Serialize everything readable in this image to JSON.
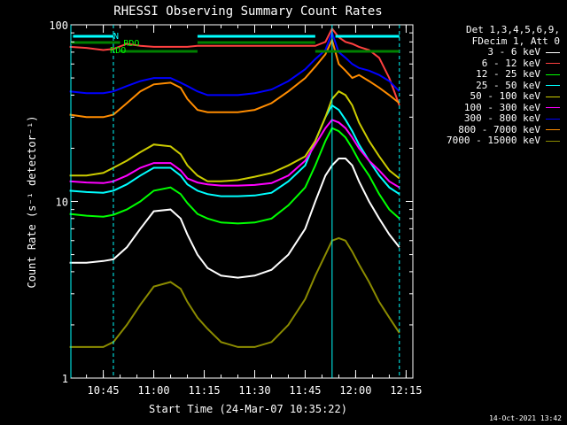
{
  "chart_data": {
    "type": "line",
    "title": "RHESSI Observing Summary Count Rates",
    "xlabel": "Start Time (24-Mar-07 10:35:22)",
    "ylabel": "Count Rate (s⁻¹ detector⁻¹)",
    "y_scale": "log",
    "ylim": [
      1,
      100
    ],
    "yticks": [
      "1",
      "10",
      "100"
    ],
    "xlim": [
      "10:35:22",
      "12:17"
    ],
    "xticks": [
      "10:45",
      "11:00",
      "11:15",
      "11:30",
      "11:45",
      "12:00",
      "12:15"
    ],
    "legend_placement": "right",
    "legend_header": [
      "Det 1,3,4,5,6,9,",
      "FDecim 1, Att 0"
    ],
    "annotations": [
      "RDO",
      "RDO",
      "N"
    ],
    "footer": "14-Oct-2021 13:42",
    "x": [
      "10:35",
      "10:40",
      "10:45",
      "10:48",
      "10:52",
      "10:56",
      "11:00",
      "11:05",
      "11:08",
      "11:10",
      "11:13",
      "11:16",
      "11:20",
      "11:25",
      "11:30",
      "11:35",
      "11:40",
      "11:45",
      "11:48",
      "11:51",
      "11:53",
      "11:55",
      "11:57",
      "11:59",
      "12:01",
      "12:04",
      "12:07",
      "12:10",
      "12:13"
    ],
    "series": [
      {
        "name": "3 - 6 keV",
        "color": "#ffffff",
        "values": [
          4.5,
          4.5,
          4.6,
          4.7,
          5.5,
          7.0,
          8.8,
          9.0,
          8.0,
          6.5,
          5.0,
          4.2,
          3.8,
          3.7,
          3.8,
          4.1,
          5.0,
          7.0,
          10.0,
          14.0,
          16.0,
          17.5,
          17.5,
          16.0,
          13.0,
          10.0,
          8.0,
          6.5,
          5.5
        ]
      },
      {
        "name": "6 - 12 keV",
        "color": "#ff4040",
        "values": [
          75,
          74,
          72,
          73,
          78,
          76,
          75,
          75,
          75,
          75,
          76,
          76,
          76,
          76,
          76,
          76,
          76,
          76,
          76,
          80,
          95,
          85,
          80,
          78,
          75,
          72,
          65,
          50,
          35
        ]
      },
      {
        "name": "12 - 25 keV",
        "color": "#00ff00",
        "values": [
          8.5,
          8.3,
          8.2,
          8.4,
          9.0,
          10.0,
          11.5,
          12.0,
          11.0,
          9.8,
          8.5,
          8.0,
          7.6,
          7.5,
          7.6,
          8.0,
          9.5,
          12.0,
          16.0,
          22.0,
          26.0,
          25.0,
          23.0,
          20.0,
          17.0,
          14.0,
          11.0,
          9.0,
          8.0
        ]
      },
      {
        "name": "25 - 50 keV",
        "color": "#00ffff",
        "values": [
          11.5,
          11.3,
          11.2,
          11.5,
          12.5,
          14.0,
          15.5,
          15.5,
          14.0,
          12.5,
          11.5,
          11.0,
          10.7,
          10.7,
          10.8,
          11.2,
          13.0,
          16.0,
          22.0,
          30.0,
          35.0,
          33.0,
          29.0,
          25.0,
          21.0,
          17.0,
          14.0,
          12.0,
          11.0
        ]
      },
      {
        "name": "50 - 100 keV",
        "color": "#cccc00",
        "values": [
          14.0,
          14.0,
          14.5,
          15.5,
          17.0,
          19.0,
          21.0,
          20.5,
          18.5,
          16.0,
          14.0,
          13.0,
          13.0,
          13.2,
          13.8,
          14.5,
          16.0,
          18.0,
          22.0,
          30.0,
          38.0,
          42.0,
          40.0,
          35.0,
          28.0,
          22.0,
          18.0,
          15.0,
          13.5
        ]
      },
      {
        "name": "100 - 300 keV",
        "color": "#ff00ff",
        "values": [
          13.0,
          12.8,
          12.7,
          13.0,
          14.0,
          15.5,
          16.5,
          16.5,
          15.0,
          13.5,
          12.8,
          12.5,
          12.3,
          12.3,
          12.4,
          12.7,
          14.0,
          17.0,
          21.0,
          26.0,
          29.0,
          28.0,
          26.0,
          23.0,
          20.0,
          17.0,
          15.0,
          13.0,
          12.0
        ]
      },
      {
        "name": "300 - 800 keV",
        "color": "#0000ff",
        "values": [
          42,
          41,
          41,
          42,
          45,
          48,
          50,
          50,
          47,
          45,
          42,
          40,
          40,
          40,
          41,
          43,
          48,
          56,
          64,
          72,
          90,
          70,
          65,
          60,
          57,
          55,
          52,
          48,
          42
        ]
      },
      {
        "name": "800 - 7000 keV",
        "color": "#ff8c00",
        "values": [
          31,
          30,
          30,
          31,
          36,
          42,
          46,
          47,
          44,
          38,
          33,
          32,
          32,
          32,
          33,
          36,
          42,
          50,
          58,
          68,
          82,
          60,
          55,
          50,
          52,
          48,
          44,
          40,
          36
        ]
      },
      {
        "name": "7000 - 15000 keV",
        "color": "#8b8b00",
        "values": [
          1.5,
          1.5,
          1.5,
          1.6,
          2.0,
          2.6,
          3.3,
          3.5,
          3.2,
          2.7,
          2.2,
          1.9,
          1.6,
          1.5,
          1.5,
          1.6,
          2.0,
          2.8,
          3.8,
          5.0,
          6.0,
          6.2,
          6.0,
          5.2,
          4.4,
          3.5,
          2.7,
          2.2,
          1.8
        ]
      }
    ]
  }
}
